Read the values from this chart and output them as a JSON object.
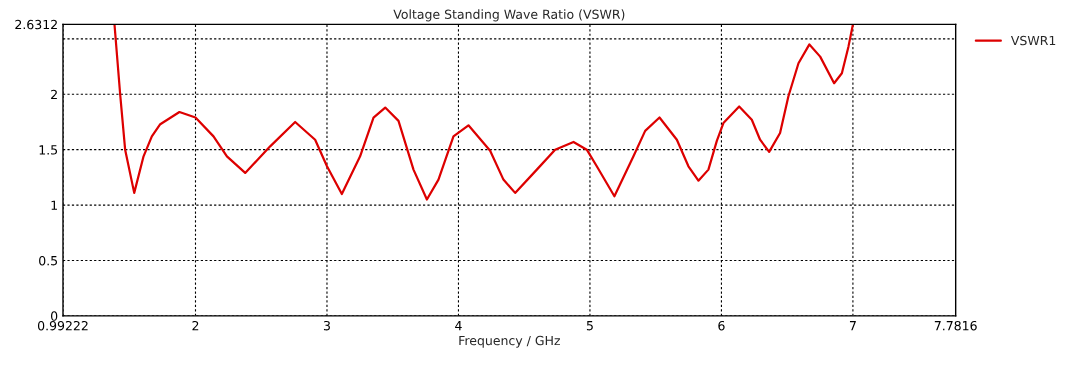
{
  "chart_data": {
    "type": "line",
    "title": "Voltage Standing Wave Ratio (VSWR)",
    "xlabel": "Frequency / GHz",
    "xlim": [
      0.99222,
      7.7816
    ],
    "xticks": [
      0.99222,
      2,
      3,
      4,
      5,
      6,
      7,
      7.7816
    ],
    "ylim": [
      0,
      2.6312
    ],
    "yticks": [
      0,
      0.5,
      1,
      1.5,
      2,
      {
        "value": 2.5,
        "label": null
      },
      2.6312
    ],
    "grid": true,
    "legend": "top right",
    "marker": "none",
    "line_style": "solid",
    "series": [
      {
        "name": "VSWR1",
        "color": "#dd0000",
        "x": [
          1.384,
          1.427,
          1.465,
          1.534,
          1.605,
          1.668,
          1.732,
          1.878,
          2.0,
          2.137,
          2.239,
          2.378,
          2.568,
          2.758,
          2.91,
          3.0,
          3.113,
          3.252,
          3.354,
          3.443,
          3.544,
          3.658,
          3.76,
          3.848,
          3.962,
          4.076,
          4.241,
          4.342,
          4.431,
          4.596,
          4.735,
          4.875,
          4.976,
          5.052,
          5.186,
          5.331,
          5.42,
          5.529,
          5.661,
          5.749,
          5.825,
          5.901,
          5.965,
          6.015,
          6.135,
          6.231,
          6.294,
          6.363,
          6.446,
          6.509,
          6.586,
          6.669,
          6.751,
          6.857,
          6.916,
          6.966,
          7.0
        ],
        "values": [
          2.63,
          2.0,
          1.5,
          1.11,
          1.44,
          1.62,
          1.73,
          1.84,
          1.79,
          1.62,
          1.44,
          1.29,
          1.53,
          1.75,
          1.59,
          1.35,
          1.1,
          1.44,
          1.79,
          1.88,
          1.76,
          1.32,
          1.05,
          1.23,
          1.62,
          1.72,
          1.49,
          1.23,
          1.11,
          1.32,
          1.5,
          1.57,
          1.5,
          1.35,
          1.08,
          1.44,
          1.67,
          1.79,
          1.59,
          1.35,
          1.22,
          1.32,
          1.58,
          1.74,
          1.89,
          1.77,
          1.59,
          1.48,
          1.65,
          1.98,
          2.28,
          2.45,
          2.34,
          2.1,
          2.19,
          2.43,
          2.63
        ]
      }
    ]
  }
}
